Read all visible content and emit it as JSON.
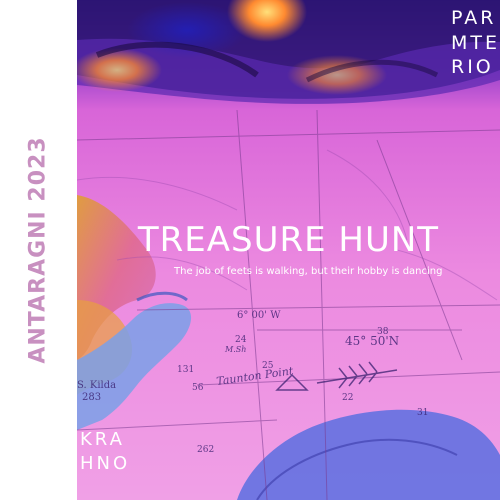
{
  "side_title": "ANTARAGNI 2023",
  "corner_lines": [
    "PAR",
    "MTE",
    "RIO"
  ],
  "headline": "TREASURE HUNT",
  "tagline": "The job of feets is walking, but their hobby is dancing",
  "bottom_lines": [
    "KRA",
    "HNO"
  ],
  "map_labels": {
    "taunton": "Taunton Point",
    "coord": "45° 50'N",
    "longitude": "6° 00' W",
    "kilda": "S. Kilda",
    "kilda_num": "283",
    "msh": "M.Sh",
    "sound_1": "24",
    "sound_2": "25",
    "sound_3": "38",
    "sound_4": "131",
    "sound_5": "56",
    "sound_6": "262",
    "sound_7": "31",
    "sound_8": "22"
  },
  "colors": {
    "side_title": "#c890c0",
    "side_bg": "#ffffff",
    "photo_pink": "#e87ad8",
    "text_white": "#ffffff"
  }
}
